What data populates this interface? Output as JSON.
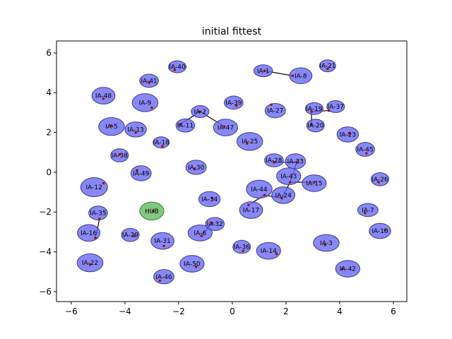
{
  "chart_data": {
    "type": "scatter",
    "title": "initial fittest",
    "xlabel": "",
    "ylabel": "",
    "xlim": [
      -6.55,
      6.5
    ],
    "ylim": [
      -6.5,
      6.6
    ],
    "xticks": [
      -6,
      -4,
      -2,
      0,
      2,
      4,
      6
    ],
    "yticks": [
      -6,
      -4,
      -2,
      0,
      2,
      4,
      6
    ],
    "xtick_labels": [
      "−6",
      "−4",
      "−2",
      "0",
      "2",
      "4",
      "6"
    ],
    "ytick_labels": [
      "−6",
      "−4",
      "−2",
      "0",
      "2",
      "4",
      "6"
    ],
    "grid": false,
    "colors": {
      "node_fill": "#6666f2",
      "node_edge": "#3c3c8c",
      "hub_fill": "#6abf6a",
      "hub_edge": "#3c7a3c",
      "point": "#a01010",
      "link": "#000000"
    },
    "hub": {
      "name": "HUB",
      "x": -3.0,
      "y": -1.95,
      "rx": 0.45,
      "ry": 0.45,
      "px": -2.95,
      "py": -1.95
    },
    "nodes": [
      {
        "name": "IA-1",
        "x": 1.15,
        "y": 5.1,
        "rx": 0.35,
        "ry": 0.3,
        "px": 1.2,
        "py": 5.1
      },
      {
        "name": "IA-2",
        "x": -1.2,
        "y": 3.05,
        "rx": 0.33,
        "ry": 0.3,
        "px": -1.2,
        "py": 3.05
      },
      {
        "name": "IA-3",
        "x": 3.5,
        "y": -3.55,
        "rx": 0.48,
        "ry": 0.42,
        "px": 3.45,
        "py": -3.65
      },
      {
        "name": "IA-5",
        "x": -4.5,
        "y": 2.3,
        "rx": 0.48,
        "ry": 0.45,
        "px": -4.5,
        "py": 2.35
      },
      {
        "name": "IA-6",
        "x": -1.2,
        "y": -3.05,
        "rx": 0.45,
        "ry": 0.4,
        "px": -1.15,
        "py": -3.2
      },
      {
        "name": "IA-7",
        "x": 5.05,
        "y": -1.9,
        "rx": 0.38,
        "ry": 0.33,
        "px": 4.95,
        "py": -2.05
      },
      {
        "name": "IA-8",
        "x": 2.55,
        "y": 4.85,
        "rx": 0.42,
        "ry": 0.4,
        "px": 2.25,
        "py": 4.85
      },
      {
        "name": "IA-9",
        "x": -3.25,
        "y": 3.5,
        "rx": 0.48,
        "ry": 0.45,
        "px": -3.0,
        "py": 3.25
      },
      {
        "name": "IA-10",
        "x": 5.5,
        "y": -2.95,
        "rx": 0.4,
        "ry": 0.38,
        "px": 5.7,
        "py": -2.9
      },
      {
        "name": "IA-11",
        "x": -1.75,
        "y": 2.35,
        "rx": 0.35,
        "ry": 0.33,
        "px": -1.95,
        "py": 2.4
      },
      {
        "name": "IA-12",
        "x": -5.15,
        "y": -0.75,
        "rx": 0.5,
        "ry": 0.48,
        "px": -4.8,
        "py": -0.55
      },
      {
        "name": "IA-13",
        "x": -3.6,
        "y": 2.15,
        "rx": 0.4,
        "ry": 0.38,
        "px": -3.6,
        "py": 2.0
      },
      {
        "name": "IA-14",
        "x": 1.35,
        "y": -3.95,
        "rx": 0.45,
        "ry": 0.42,
        "px": 1.65,
        "py": -4.1
      },
      {
        "name": "IA-15",
        "x": 3.05,
        "y": -0.55,
        "rx": 0.45,
        "ry": 0.42,
        "px": 3.05,
        "py": -0.5
      },
      {
        "name": "IA-16",
        "x": -5.35,
        "y": -3.05,
        "rx": 0.42,
        "ry": 0.42,
        "px": -5.1,
        "py": -3.3
      },
      {
        "name": "IA-17",
        "x": 0.7,
        "y": -1.9,
        "rx": 0.43,
        "ry": 0.42,
        "px": 0.6,
        "py": -1.65
      },
      {
        "name": "IA-18",
        "x": -2.65,
        "y": 1.5,
        "rx": 0.3,
        "ry": 0.28,
        "px": -2.6,
        "py": 1.3
      },
      {
        "name": "IA-19",
        "x": 3.05,
        "y": 3.2,
        "rx": 0.33,
        "ry": 0.3,
        "px": 2.95,
        "py": 3.05
      },
      {
        "name": "IA-20",
        "x": 3.1,
        "y": 2.35,
        "rx": 0.33,
        "ry": 0.32,
        "px": 2.95,
        "py": 2.4
      },
      {
        "name": "IA-21",
        "x": 3.55,
        "y": 5.35,
        "rx": 0.3,
        "ry": 0.3,
        "px": 3.55,
        "py": 5.2
      },
      {
        "name": "IA-22",
        "x": -5.3,
        "y": -4.55,
        "rx": 0.48,
        "ry": 0.45,
        "px": -5.3,
        "py": -4.65
      },
      {
        "name": "IA-23",
        "x": 4.3,
        "y": 1.9,
        "rx": 0.4,
        "ry": 0.38,
        "px": 4.35,
        "py": 1.95
      },
      {
        "name": "IA-24",
        "x": 1.9,
        "y": -1.15,
        "rx": 0.43,
        "ry": 0.42,
        "px": 1.85,
        "py": -1.3
      },
      {
        "name": "IA-25",
        "x": 0.65,
        "y": 1.55,
        "rx": 0.48,
        "ry": 0.45,
        "px": 0.55,
        "py": 1.45
      },
      {
        "name": "IA-26",
        "x": 5.5,
        "y": -0.35,
        "rx": 0.33,
        "ry": 0.33,
        "px": 5.45,
        "py": -0.5
      },
      {
        "name": "IA-27",
        "x": 1.6,
        "y": 3.1,
        "rx": 0.38,
        "ry": 0.36,
        "px": 1.45,
        "py": 3.4
      },
      {
        "name": "IA-28",
        "x": 1.55,
        "y": 0.6,
        "rx": 0.35,
        "ry": 0.33,
        "px": 1.55,
        "py": 0.5
      },
      {
        "name": "IA-29",
        "x": -3.8,
        "y": -3.15,
        "rx": 0.33,
        "ry": 0.33,
        "px": -3.65,
        "py": -3.2
      },
      {
        "name": "IA-30",
        "x": -1.35,
        "y": 0.25,
        "rx": 0.38,
        "ry": 0.36,
        "px": -1.4,
        "py": 0.15
      },
      {
        "name": "IA-31",
        "x": -2.6,
        "y": -3.45,
        "rx": 0.43,
        "ry": 0.42,
        "px": -2.55,
        "py": -3.7
      },
      {
        "name": "IA-32",
        "x": -0.65,
        "y": -2.6,
        "rx": 0.35,
        "ry": 0.33,
        "px": -0.75,
        "py": -2.55
      },
      {
        "name": "IA-33",
        "x": 2.35,
        "y": 0.55,
        "rx": 0.38,
        "ry": 0.38,
        "px": 2.4,
        "py": 0.5
      },
      {
        "name": "IA-34",
        "x": -0.85,
        "y": -1.35,
        "rx": 0.4,
        "ry": 0.38,
        "px": -0.75,
        "py": -1.3
      },
      {
        "name": "IA-35",
        "x": -5.0,
        "y": -2.05,
        "rx": 0.35,
        "ry": 0.35,
        "px": -4.95,
        "py": -2.35
      },
      {
        "name": "IA-36",
        "x": 0.35,
        "y": -3.75,
        "rx": 0.33,
        "ry": 0.33,
        "px": 0.4,
        "py": -3.95
      },
      {
        "name": "IA-37",
        "x": 3.85,
        "y": 3.3,
        "rx": 0.33,
        "ry": 0.3,
        "px": 3.6,
        "py": 3.1
      },
      {
        "name": "IA-38",
        "x": -4.2,
        "y": 0.85,
        "rx": 0.33,
        "ry": 0.33,
        "px": -4.2,
        "py": 0.9
      },
      {
        "name": "IA-39",
        "x": 0.05,
        "y": 3.5,
        "rx": 0.35,
        "ry": 0.33,
        "px": 0.15,
        "py": 3.35
      },
      {
        "name": "IA-40",
        "x": -2.05,
        "y": 5.3,
        "rx": 0.33,
        "ry": 0.3,
        "px": -2.15,
        "py": 5.15
      },
      {
        "name": "IA-41",
        "x": -3.1,
        "y": 4.6,
        "rx": 0.35,
        "ry": 0.33,
        "px": -3.1,
        "py": 4.5
      },
      {
        "name": "IA-42",
        "x": 4.3,
        "y": -4.85,
        "rx": 0.45,
        "ry": 0.42,
        "px": 4.1,
        "py": -4.85
      },
      {
        "name": "IA-43",
        "x": 2.1,
        "y": -0.2,
        "rx": 0.45,
        "ry": 0.42,
        "px": 2.15,
        "py": -0.5
      },
      {
        "name": "IA-44",
        "x": 1.0,
        "y": -0.85,
        "rx": 0.48,
        "ry": 0.45,
        "px": 1.2,
        "py": -1.15
      },
      {
        "name": "IA-45",
        "x": 4.95,
        "y": 1.15,
        "rx": 0.35,
        "ry": 0.35,
        "px": 5.0,
        "py": 0.95
      },
      {
        "name": "IA-46",
        "x": -2.55,
        "y": -5.25,
        "rx": 0.38,
        "ry": 0.36,
        "px": -2.7,
        "py": -5.45
      },
      {
        "name": "IA-47",
        "x": -0.25,
        "y": 2.25,
        "rx": 0.45,
        "ry": 0.42,
        "px": -0.3,
        "py": 2.3
      },
      {
        "name": "IA-48",
        "x": -4.8,
        "y": 3.85,
        "rx": 0.43,
        "ry": 0.42,
        "px": -4.8,
        "py": 3.7
      },
      {
        "name": "IA-49",
        "x": -3.4,
        "y": -0.05,
        "rx": 0.38,
        "ry": 0.38,
        "px": -3.55,
        "py": 0.1
      },
      {
        "name": "IA-50",
        "x": -1.5,
        "y": -4.6,
        "rx": 0.45,
        "ry": 0.42,
        "px": -1.35,
        "py": -4.75
      }
    ],
    "links": [
      [
        [
          1.2,
          5.1
        ],
        [
          2.25,
          4.85
        ]
      ],
      [
        [
          -1.2,
          3.05
        ],
        [
          -1.95,
          2.4
        ]
      ],
      [
        [
          -1.2,
          3.05
        ],
        [
          -0.3,
          2.3
        ]
      ],
      [
        [
          2.95,
          3.05
        ],
        [
          2.95,
          2.4
        ]
      ],
      [
        [
          2.95,
          3.05
        ],
        [
          3.6,
          3.1
        ]
      ],
      [
        [
          1.55,
          0.5
        ],
        [
          2.4,
          0.5
        ]
      ],
      [
        [
          2.4,
          0.5
        ],
        [
          2.15,
          -0.5
        ]
      ],
      [
        [
          2.15,
          -0.5
        ],
        [
          1.85,
          -1.3
        ]
      ],
      [
        [
          1.85,
          -1.3
        ],
        [
          1.2,
          -1.15
        ]
      ],
      [
        [
          1.2,
          -1.15
        ],
        [
          0.6,
          -1.65
        ]
      ],
      [
        [
          2.15,
          -0.5
        ],
        [
          3.05,
          -0.5
        ]
      ],
      [
        [
          -4.95,
          -2.35
        ],
        [
          -5.1,
          -3.3
        ]
      ],
      [
        [
          -0.75,
          -2.55
        ],
        [
          -1.15,
          -3.2
        ]
      ]
    ]
  }
}
